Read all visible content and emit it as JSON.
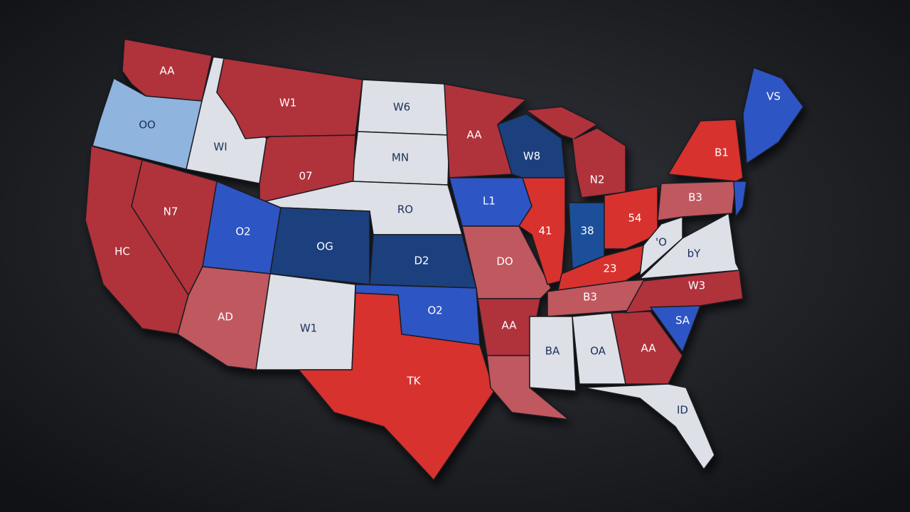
{
  "states": [
    {
      "id": "wa",
      "label": "AA",
      "color": "#b0323a"
    },
    {
      "id": "or",
      "label": "OO",
      "color": "#8fb4dd"
    },
    {
      "id": "id",
      "label": "WI",
      "color": "#dde0e6"
    },
    {
      "id": "mt",
      "label": "W1",
      "color": "#b0323a"
    },
    {
      "id": "nd",
      "label": "W6",
      "color": "#dde0e6"
    },
    {
      "id": "sd",
      "label": "MN",
      "color": "#dde0e6"
    },
    {
      "id": "wy",
      "label": "07",
      "color": "#b0323a"
    },
    {
      "id": "ne",
      "label": "RO",
      "color": "#dde0e6"
    },
    {
      "id": "nv",
      "label": "N7",
      "color": "#b0323a"
    },
    {
      "id": "ca",
      "label": "HC",
      "color": "#b0323a"
    },
    {
      "id": "ut",
      "label": "O2",
      "color": "#2f55c4"
    },
    {
      "id": "co",
      "label": "OG",
      "color": "#1f3f7e"
    },
    {
      "id": "az",
      "label": "AD",
      "color": "#c0585e"
    },
    {
      "id": "nm",
      "label": "W1",
      "color": "#dde0e6"
    },
    {
      "id": "ks",
      "label": "D2",
      "color": "#1f3f7e"
    },
    {
      "id": "ok",
      "label": "O2",
      "color": "#2f55c4"
    },
    {
      "id": "tx",
      "label": "TK",
      "color": "#d8302f"
    },
    {
      "id": "mn",
      "label": "AA",
      "color": "#b0323a"
    },
    {
      "id": "ia",
      "label": "L1",
      "color": "#2f55c4"
    },
    {
      "id": "mo",
      "label": "DO",
      "color": "#c0585e"
    },
    {
      "id": "ar",
      "label": "AA",
      "color": "#b0323a"
    },
    {
      "id": "la",
      "label": "",
      "color": "#c0585e"
    },
    {
      "id": "wi",
      "label": "W8",
      "color": "#1f3f7e"
    },
    {
      "id": "mi",
      "label": "N2",
      "color": "#b0323a"
    },
    {
      "id": "il",
      "label": "41",
      "color": "#d8302f"
    },
    {
      "id": "in",
      "label": "38",
      "color": "#1f4f9a"
    },
    {
      "id": "oh",
      "label": "54",
      "color": "#d8302f"
    },
    {
      "id": "ky",
      "label": "23",
      "color": "#d8302f"
    },
    {
      "id": "tn",
      "label": "B3",
      "color": "#c0585e"
    },
    {
      "id": "ms",
      "label": "BA",
      "color": "#dde0e6"
    },
    {
      "id": "al",
      "label": "OA",
      "color": "#dde0e6"
    },
    {
      "id": "ga",
      "label": "AA",
      "color": "#b0323a"
    },
    {
      "id": "fl",
      "label": "ID",
      "color": "#dde0e6"
    },
    {
      "id": "sc",
      "label": "SA",
      "color": "#2f55c4"
    },
    {
      "id": "nc",
      "label": "W3",
      "color": "#b0323a"
    },
    {
      "id": "va",
      "label": "bY",
      "color": "#dde0e6"
    },
    {
      "id": "wv",
      "label": "'O",
      "color": "#dde0e6"
    },
    {
      "id": "pa",
      "label": "B3",
      "color": "#c0585e"
    },
    {
      "id": "ny",
      "label": "B1",
      "color": "#d8302f"
    },
    {
      "id": "nj",
      "label": "",
      "color": "#2f55c4"
    },
    {
      "id": "me",
      "label": "VS",
      "color": "#2f55c4"
    }
  ]
}
